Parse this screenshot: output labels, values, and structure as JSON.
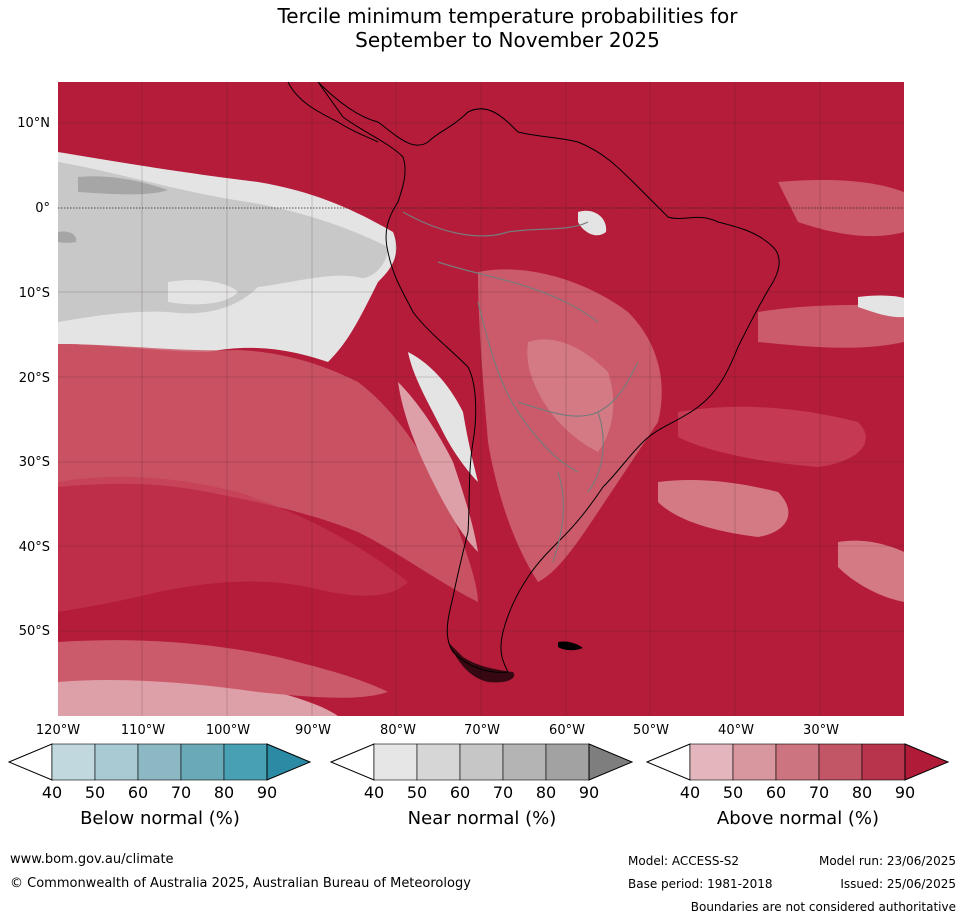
{
  "title_line1": "Tercile minimum temperature probabilities for",
  "title_line2": "September to November 2025",
  "map": {
    "lat_labels": [
      "10°N",
      "0°",
      "10°S",
      "20°S",
      "30°S",
      "40°S",
      "50°S"
    ],
    "lon_labels": [
      "120°W",
      "110°W",
      "100°W",
      "90°W",
      "80°W",
      "70°W",
      "60°W",
      "50°W",
      "40°W",
      "30°W"
    ],
    "colors": {
      "above_90": "#b41c3a",
      "above_80": "#c53a52",
      "above_70": "#cb5a6a",
      "above_60": "#d47a85",
      "above_50": "#dea0a8",
      "near_80": "#a6a6a6",
      "near_70": "#b8b8b8",
      "near_60": "#c8c8c8",
      "near_50": "#e4e4e4"
    }
  },
  "colorbars": [
    {
      "title": "Below normal (%)",
      "ticks": [
        "40",
        "50",
        "60",
        "70",
        "80",
        "90"
      ],
      "colors": [
        "#c0d8de",
        "#a9cad2",
        "#8cb8c4",
        "#6aaab8",
        "#48a0b4",
        "#2b8aa4"
      ]
    },
    {
      "title": "Near normal (%)",
      "ticks": [
        "40",
        "50",
        "60",
        "70",
        "80",
        "90"
      ],
      "colors": [
        "#e6e6e6",
        "#d6d6d6",
        "#c6c6c6",
        "#b4b4b4",
        "#a2a2a2",
        "#7e7e7e"
      ]
    },
    {
      "title": "Above normal (%)",
      "ticks": [
        "40",
        "50",
        "60",
        "70",
        "80",
        "90"
      ],
      "colors": [
        "#e2b6bc",
        "#d8969f",
        "#cc7580",
        "#c25566",
        "#b8344c",
        "#b01c38"
      ]
    }
  ],
  "footer": {
    "url": "www.bom.gov.au/climate",
    "copyright": "© Commonwealth of Australia 2025, Australian Bureau of Meteorology",
    "model": "Model: ACCESS-S2",
    "model_run": "Model run: 23/06/2025",
    "base_period": "Base period: 1981-2018",
    "issued": "Issued: 25/06/2025",
    "boundaries": "Boundaries are not considered authoritative"
  }
}
